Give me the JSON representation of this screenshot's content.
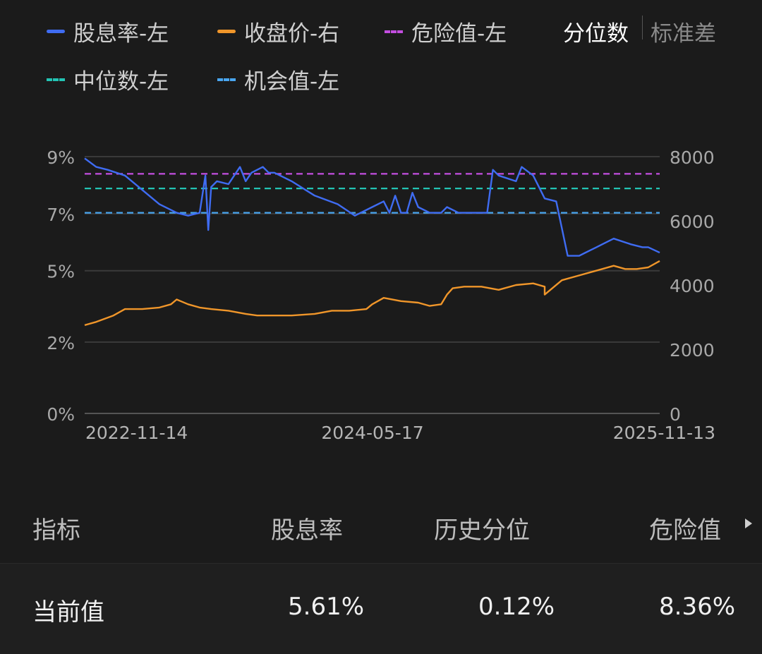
{
  "legend": {
    "items": [
      {
        "label": "股息率-左",
        "color": "#3f6cf2",
        "style": "solid"
      },
      {
        "label": "收盘价-右",
        "color": "#f0962a",
        "style": "solid"
      },
      {
        "label": "危险值-左",
        "color": "#c34ee0",
        "style": "dashed"
      },
      {
        "label": "中位数-左",
        "color": "#23c4b4",
        "style": "dashed"
      },
      {
        "label": "机会值-左",
        "color": "#49a6f0",
        "style": "dashed"
      }
    ],
    "toggle_active": "分位数",
    "toggle_inactive": "标准差"
  },
  "table": {
    "headers": [
      "指标",
      "股息率",
      "历史分位",
      "危险值"
    ],
    "row_label": "当前值",
    "values": [
      "5.61%",
      "0.12%",
      "8.36%"
    ]
  },
  "chart_data": {
    "type": "line",
    "x_tick_labels": [
      "2022-11-14",
      "2024-05-17",
      "2025-11-13"
    ],
    "y_left": {
      "ticks": [
        "9%",
        "7%",
        "5%",
        "2%",
        "0%"
      ],
      "tick_values": [
        8.96,
        6.97,
        4.98,
        2.49,
        0
      ],
      "range": [
        0,
        8.96
      ]
    },
    "y_right": {
      "ticks": [
        "8000",
        "6000",
        "4000",
        "2000",
        "0"
      ],
      "tick_values": [
        8000,
        6000,
        4000,
        2000,
        0
      ],
      "range": [
        0,
        8000
      ]
    },
    "grid": true,
    "reference_lines": [
      {
        "name": "危险值-左",
        "value": 8.36,
        "axis": "left",
        "color": "#c34ee0"
      },
      {
        "name": "中位数-左",
        "value": 7.85,
        "axis": "left",
        "color": "#23c4b4"
      },
      {
        "name": "机会值-左",
        "value": 7.0,
        "axis": "left",
        "color": "#49a6f0"
      }
    ],
    "series": [
      {
        "name": "股息率-左",
        "axis": "left",
        "color": "#3f6cf2",
        "x": [
          0,
          0.02,
          0.04,
          0.07,
          0.1,
          0.13,
          0.16,
          0.18,
          0.2,
          0.21,
          0.215,
          0.22,
          0.23,
          0.25,
          0.27,
          0.28,
          0.29,
          0.3,
          0.31,
          0.32,
          0.33,
          0.36,
          0.4,
          0.44,
          0.47,
          0.5,
          0.52,
          0.53,
          0.54,
          0.55,
          0.56,
          0.57,
          0.58,
          0.6,
          0.62,
          0.63,
          0.65,
          0.7,
          0.71,
          0.72,
          0.75,
          0.76,
          0.78,
          0.8,
          0.82,
          0.84,
          0.86,
          0.87,
          0.88,
          0.89,
          0.9,
          0.92,
          0.95,
          0.97,
          0.98,
          1.0
        ],
        "y": [
          8.9,
          8.6,
          8.5,
          8.3,
          7.8,
          7.3,
          7.0,
          6.9,
          7.0,
          8.3,
          6.4,
          7.9,
          8.1,
          8.0,
          8.6,
          8.1,
          8.4,
          8.5,
          8.6,
          8.4,
          8.4,
          8.1,
          7.6,
          7.3,
          6.9,
          7.2,
          7.4,
          7.0,
          7.6,
          7.0,
          7.0,
          7.7,
          7.2,
          7.0,
          7.0,
          7.2,
          7.0,
          7.0,
          8.5,
          8.3,
          8.1,
          8.6,
          8.3,
          7.5,
          7.4,
          5.5,
          5.5,
          5.6,
          5.7,
          5.8,
          5.9,
          6.1,
          5.9,
          5.8,
          5.8,
          5.61
        ]
      },
      {
        "name": "收盘价-右",
        "axis": "right",
        "color": "#f0962a",
        "x": [
          0,
          0.02,
          0.05,
          0.07,
          0.1,
          0.13,
          0.15,
          0.16,
          0.18,
          0.2,
          0.22,
          0.25,
          0.28,
          0.3,
          0.33,
          0.36,
          0.4,
          0.43,
          0.46,
          0.49,
          0.5,
          0.52,
          0.55,
          0.58,
          0.6,
          0.62,
          0.63,
          0.64,
          0.66,
          0.69,
          0.72,
          0.75,
          0.78,
          0.8,
          0.8,
          0.83,
          0.86,
          0.88,
          0.9,
          0.92,
          0.94,
          0.96,
          0.98,
          1.0
        ],
        "y": [
          2750,
          2850,
          3050,
          3250,
          3250,
          3300,
          3400,
          3550,
          3400,
          3300,
          3250,
          3200,
          3100,
          3050,
          3050,
          3050,
          3100,
          3200,
          3200,
          3250,
          3400,
          3600,
          3500,
          3450,
          3350,
          3400,
          3700,
          3900,
          3950,
          3950,
          3850,
          4000,
          4050,
          3950,
          3700,
          4150,
          4300,
          4400,
          4500,
          4600,
          4500,
          4500,
          4550,
          4750
        ]
      }
    ]
  }
}
